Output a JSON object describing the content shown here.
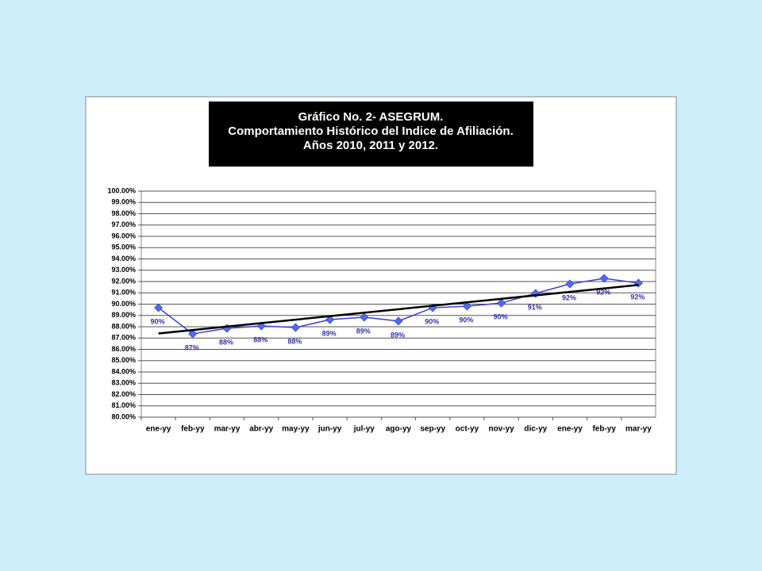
{
  "chart_data": {
    "type": "line",
    "title": [
      "Gráfico No. 2- ASEGRUM.",
      "Comportamiento Histórico del Indice de Afiliación.",
      "Años 2010, 2011 y 2012."
    ],
    "categories": [
      "ene-yy",
      "feb-yy",
      "mar-yy",
      "abr-yy",
      "may-yy",
      "jun-yy",
      "jul-yy",
      "ago-yy",
      "sep-yy",
      "oct-yy",
      "nov-yy",
      "dic-yy",
      "ene-yy",
      "feb-yy",
      "mar-yy"
    ],
    "series": [
      {
        "color": "#3b3bd0",
        "marker_color": "#4a6cf0",
        "values": [
          89.68,
          87.37,
          87.86,
          88.07,
          87.93,
          88.63,
          88.84,
          88.5,
          89.68,
          89.82,
          90.1,
          90.95,
          91.79,
          92.28,
          91.86
        ],
        "value_labels": [
          "90%",
          "87%",
          "88%",
          "88%",
          "88%",
          "89%",
          "89%",
          "89%",
          "90%",
          "90%",
          "90%",
          "91%",
          "92%",
          "92%",
          "92%"
        ]
      }
    ],
    "trendline": {
      "start": 87.4,
      "end": 91.7,
      "color": "#000000"
    },
    "ylim": [
      80,
      100
    ],
    "yticks": [
      {
        "value": 80,
        "label": "80.00%"
      },
      {
        "value": 81,
        "label": "81.00%"
      },
      {
        "value": 82,
        "label": "82.00%"
      },
      {
        "value": 83,
        "label": "83.00%"
      },
      {
        "value": 84,
        "label": "84.00%"
      },
      {
        "value": 85,
        "label": "85.00%"
      },
      {
        "value": 86,
        "label": "86.00%"
      },
      {
        "value": 87,
        "label": "87.00%"
      },
      {
        "value": 88,
        "label": "88.00%"
      },
      {
        "value": 89,
        "label": "89.00%"
      },
      {
        "value": 90,
        "label": "90.00%"
      },
      {
        "value": 91,
        "label": "91.00%"
      },
      {
        "value": 92,
        "label": "92.00%"
      },
      {
        "value": 93,
        "label": "93.00%"
      },
      {
        "value": 94,
        "label": "94.00%"
      },
      {
        "value": 95,
        "label": "95.00%"
      },
      {
        "value": 96,
        "label": "96.00%"
      },
      {
        "value": 97,
        "label": "97.00%"
      },
      {
        "value": 98,
        "label": "98.00%"
      },
      {
        "value": 99,
        "label": "99.00%"
      },
      {
        "value": 100,
        "label": "100.00%"
      }
    ],
    "grid": true
  }
}
